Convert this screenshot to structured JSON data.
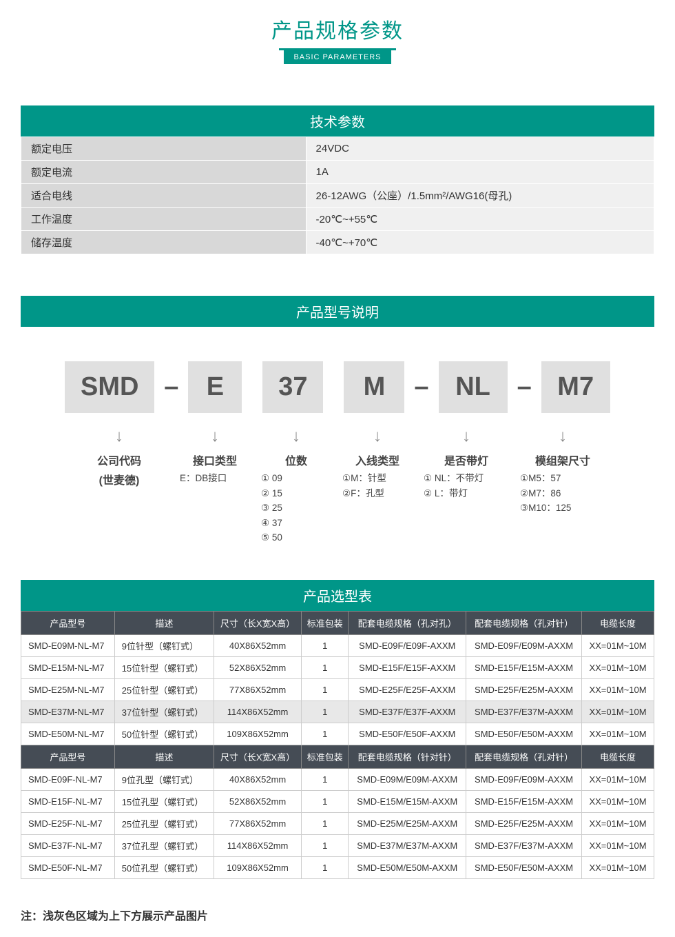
{
  "colors": {
    "teal": "#009688",
    "dark_header": "#454c55",
    "light_gray": "#e0e0e0",
    "label_gray": "#d8d8d8",
    "value_gray": "#f0f0f0"
  },
  "header": {
    "title": "产品规格参数",
    "subtitle": "BASIC PARAMETERS"
  },
  "tech_params": {
    "title": "技术参数",
    "rows": [
      {
        "label": "额定电压",
        "value": "24VDC"
      },
      {
        "label": "额定电流",
        "value": "1A"
      },
      {
        "label": "适合电线",
        "value": "26-12AWG（公座）/1.5mm²/AWG16(母孔)"
      },
      {
        "label": "工作温度",
        "value": "-20℃~+55℃"
      },
      {
        "label": "储存温度",
        "value": "-40℃~+70℃"
      }
    ]
  },
  "model_explain": {
    "title": "产品型号说明",
    "codes": [
      "SMD",
      "E",
      "37",
      "M",
      "NL",
      "M7"
    ],
    "dashes": [
      true,
      false,
      false,
      true,
      true
    ],
    "columns": [
      {
        "title": "公司代码",
        "sub": "(世麦德)",
        "lines": []
      },
      {
        "title": "接口类型",
        "sub": "",
        "lines": [
          "E：DB接口"
        ]
      },
      {
        "title": "位数",
        "sub": "",
        "lines": [
          "① 09",
          "② 15",
          "③ 25",
          "④ 37",
          "⑤ 50"
        ]
      },
      {
        "title": "入线类型",
        "sub": "",
        "lines": [
          "①M：针型",
          "②F：孔型"
        ]
      },
      {
        "title": "是否带灯",
        "sub": "",
        "lines": [
          "① NL：不带灯",
          "②    L：带灯"
        ]
      },
      {
        "title": "模组架尺寸",
        "sub": "",
        "lines": [
          "①M5：57",
          "②M7：86",
          "③M10：125"
        ]
      }
    ]
  },
  "selection": {
    "title": "产品选型表",
    "headers1": [
      "产品型号",
      "描述",
      "尺寸（长X宽X高）",
      "标准包装",
      "配套电缆规格（孔对孔）",
      "配套电缆规格（孔对针）",
      "电缆长度"
    ],
    "rows1": [
      [
        "SMD-E09M-NL-M7",
        "9位针型（螺钉式）",
        "40X86X52mm",
        "1",
        "SMD-E09F/E09F-AXXM",
        "SMD-E09F/E09M-AXXM",
        "XX=01M~10M"
      ],
      [
        "SMD-E15M-NL-M7",
        "15位针型（螺钉式）",
        "52X86X52mm",
        "1",
        "SMD-E15F/E15F-AXXM",
        "SMD-E15F/E15M-AXXM",
        "XX=01M~10M"
      ],
      [
        "SMD-E25M-NL-M7",
        "25位针型（螺钉式）",
        "77X86X52mm",
        "1",
        "SMD-E25F/E25F-AXXM",
        "SMD-E25F/E25M-AXXM",
        "XX=01M~10M"
      ],
      [
        "SMD-E37M-NL-M7",
        "37位针型（螺钉式）",
        "114X86X52mm",
        "1",
        "SMD-E37F/E37F-AXXM",
        "SMD-E37F/E37M-AXXM",
        "XX=01M~10M"
      ],
      [
        "SMD-E50M-NL-M7",
        "50位针型（螺钉式）",
        "109X86X52mm",
        "1",
        "SMD-E50F/E50F-AXXM",
        "SMD-E50F/E50M-AXXM",
        "XX=01M~10M"
      ]
    ],
    "highlight1": 3,
    "headers2": [
      "产品型号",
      "描述",
      "尺寸（长X宽X高）",
      "标准包装",
      "配套电缆规格（针对针）",
      "配套电缆规格（孔对针）",
      "电缆长度"
    ],
    "rows2": [
      [
        "SMD-E09F-NL-M7",
        "9位孔型（螺钉式）",
        "40X86X52mm",
        "1",
        "SMD-E09M/E09M-AXXM",
        "SMD-E09F/E09M-AXXM",
        "XX=01M~10M"
      ],
      [
        "SMD-E15F-NL-M7",
        "15位孔型（螺钉式）",
        "52X86X52mm",
        "1",
        "SMD-E15M/E15M-AXXM",
        "SMD-E15F/E15M-AXXM",
        "XX=01M~10M"
      ],
      [
        "SMD-E25F-NL-M7",
        "25位孔型（螺钉式）",
        "77X86X52mm",
        "1",
        "SMD-E25M/E25M-AXXM",
        "SMD-E25F/E25M-AXXM",
        "XX=01M~10M"
      ],
      [
        "SMD-E37F-NL-M7",
        "37位孔型（螺钉式）",
        "114X86X52mm",
        "1",
        "SMD-E37M/E37M-AXXM",
        "SMD-E37F/E37M-AXXM",
        "XX=01M~10M"
      ],
      [
        "SMD-E50F-NL-M7",
        "50位孔型（螺钉式）",
        "109X86X52mm",
        "1",
        "SMD-E50M/E50M-AXXM",
        "SMD-E50F/E50M-AXXM",
        "XX=01M~10M"
      ]
    ]
  },
  "footnote": "注：浅灰色区域为上下方展示产品图片"
}
